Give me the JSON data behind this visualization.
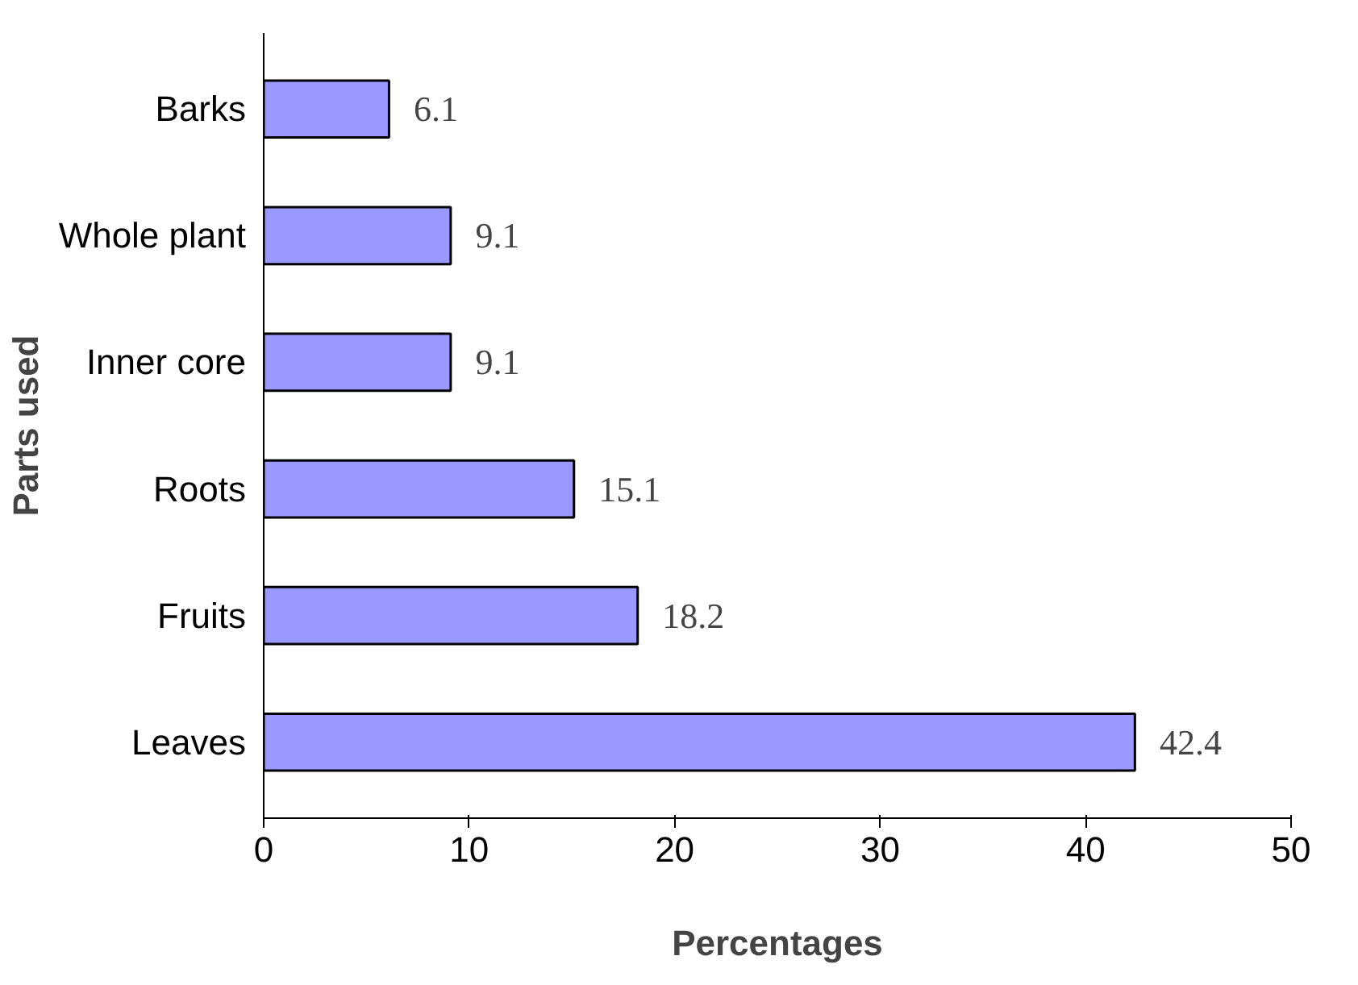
{
  "chart_data": {
    "type": "bar",
    "orientation": "horizontal",
    "xlabel": "Percentages",
    "ylabel": "Parts used",
    "categories": [
      "Barks",
      "Whole plant",
      "Inner core",
      "Roots",
      "Fruits",
      "Leaves"
    ],
    "values": [
      6.1,
      9.1,
      9.1,
      15.1,
      18.2,
      42.4
    ],
    "color": "#9999ff",
    "xlim": [
      0,
      50
    ],
    "xticks": [
      0,
      10,
      20,
      30,
      40,
      50
    ],
    "grid": false,
    "data_labels": true
  }
}
